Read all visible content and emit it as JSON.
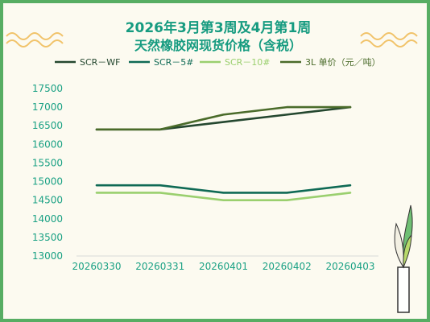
{
  "title_line1": "2026年3月第3周及4月第1周",
  "title_line2": "天然橡胶网现货价格（含税）",
  "colors": {
    "border": "#57ad63",
    "background": "#fcfaf0",
    "title": "#169b80",
    "axis_text": "#1aa184"
  },
  "chart_data": {
    "type": "line",
    "title": "2026年3月第3周及4月第1周 天然橡胶网现货价格（含税）",
    "xlabel": "",
    "ylabel": "",
    "categories": [
      "20260330",
      "20260331",
      "20260401",
      "20260402",
      "20260403"
    ],
    "y_ticks": [
      13000,
      13500,
      14000,
      14500,
      15000,
      15500,
      16000,
      16500,
      17000,
      17500
    ],
    "ylim": [
      13000,
      17500
    ],
    "grid": false,
    "legend_position": "top",
    "series": [
      {
        "name": "SCR－WF",
        "color": "#24472f",
        "values": [
          16400,
          16400,
          16600,
          16800,
          17000
        ]
      },
      {
        "name": "SCR－5#",
        "color": "#0f6a55",
        "values": [
          14900,
          14900,
          14700,
          14700,
          14900
        ]
      },
      {
        "name": "SCR－10#",
        "color": "#9acf6e",
        "values": [
          14700,
          14700,
          14500,
          14500,
          14700
        ]
      },
      {
        "name": "3L 单价（元／吨）",
        "color": "#4a6b2a",
        "values": [
          16400,
          16400,
          16800,
          17000,
          17000
        ]
      }
    ]
  }
}
